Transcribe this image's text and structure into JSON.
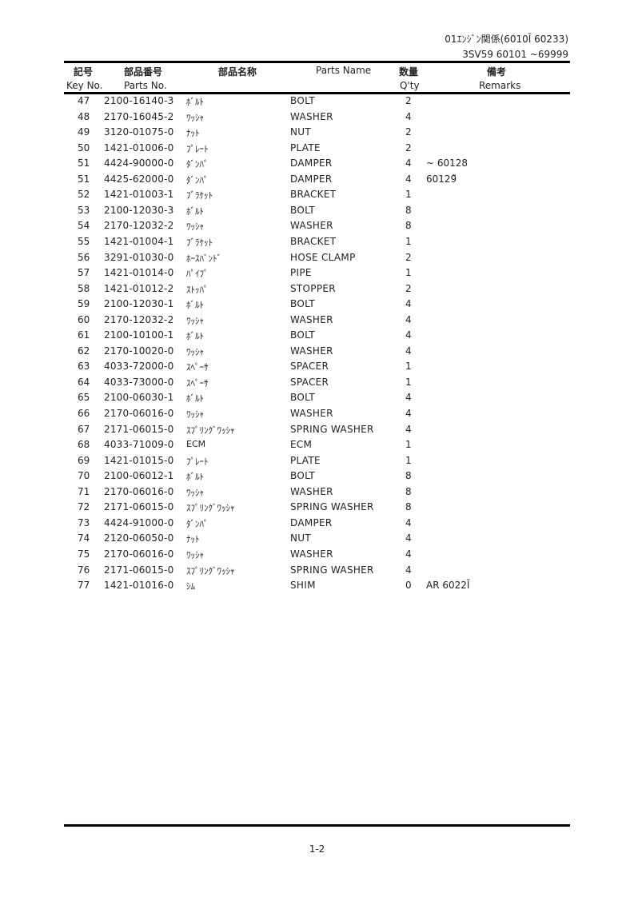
{
  "header": {
    "section": "01ｴﾝｼﾞﾝ関係(6010Ī 60233)",
    "model": "3SV59 60101 ~69999"
  },
  "columns": {
    "key_jp": "記号",
    "key_en": "Key No.",
    "partno_jp": "部品番号",
    "partno_en": "Parts No.",
    "name_jp": "部品名称",
    "name_en": "Parts Name",
    "qty_jp": "数量",
    "qty_en": "Q'ty",
    "remarks_jp": "備考",
    "remarks_en": "Remarks"
  },
  "rows": [
    {
      "key": "47",
      "part_no": "2100-16140-3",
      "name_jp": "ﾎﾞﾙﾄ",
      "name_en": "BOLT",
      "qty": "2",
      "remarks": ""
    },
    {
      "key": "48",
      "part_no": "2170-16045-2",
      "name_jp": "ﾜｯｼｬ",
      "name_en": "WASHER",
      "qty": "4",
      "remarks": ""
    },
    {
      "key": "49",
      "part_no": "3120-01075-0",
      "name_jp": "ﾅｯﾄ",
      "name_en": "NUT",
      "qty": "2",
      "remarks": ""
    },
    {
      "key": "50",
      "part_no": "1421-01006-0",
      "name_jp": "ﾌﾟﾚｰﾄ",
      "name_en": "PLATE",
      "qty": "2",
      "remarks": ""
    },
    {
      "key": "51",
      "part_no": "4424-90000-0",
      "name_jp": "ﾀﾞﾝﾊﾟ",
      "name_en": "DAMPER",
      "qty": "4",
      "remarks": "~ 60128"
    },
    {
      "key": "51",
      "part_no": "4425-62000-0",
      "name_jp": "ﾀﾞﾝﾊﾟ",
      "name_en": "DAMPER",
      "qty": "4",
      "remarks": "6012̃\u00169"
    },
    {
      "key": "52",
      "part_no": "1421-01003-1",
      "name_jp": "ﾌﾞﾗｹｯﾄ",
      "name_en": "BRACKET",
      "qty": "1",
      "remarks": ""
    },
    {
      "key": "53",
      "part_no": "2100-12030-3",
      "name_jp": "ﾎﾞﾙﾄ",
      "name_en": "BOLT",
      "qty": "8",
      "remarks": ""
    },
    {
      "key": "54",
      "part_no": "2170-12032-2",
      "name_jp": "ﾜｯｼｬ",
      "name_en": "WASHER",
      "qty": "8",
      "remarks": ""
    },
    {
      "key": "55",
      "part_no": "1421-01004-1",
      "name_jp": "ﾌﾞﾗｹｯﾄ",
      "name_en": "BRACKET",
      "qty": "1",
      "remarks": ""
    },
    {
      "key": "56",
      "part_no": "3291-01030-0",
      "name_jp": "ﾎｰｽﾊﾞﾝﾄﾞ",
      "name_en": "HOSE CLAMP",
      "qty": "2",
      "remarks": ""
    },
    {
      "key": "57",
      "part_no": "1421-01014-0",
      "name_jp": "ﾊﾟｲﾌﾟ",
      "name_en": "PIPE",
      "qty": "1",
      "remarks": ""
    },
    {
      "key": "58",
      "part_no": "1421-01012-2",
      "name_jp": "ｽﾄｯﾊﾟ",
      "name_en": "STOPPER",
      "qty": "2",
      "remarks": ""
    },
    {
      "key": "59",
      "part_no": "2100-12030-1",
      "name_jp": "ﾎﾞﾙﾄ",
      "name_en": "BOLT",
      "qty": "4",
      "remarks": ""
    },
    {
      "key": "60",
      "part_no": "2170-12032-2",
      "name_jp": "ﾜｯｼｬ",
      "name_en": "WASHER",
      "qty": "4",
      "remarks": ""
    },
    {
      "key": "61",
      "part_no": "2100-10100-1",
      "name_jp": "ﾎﾞﾙﾄ",
      "name_en": "BOLT",
      "qty": "4",
      "remarks": ""
    },
    {
      "key": "62",
      "part_no": "2170-10020-0",
      "name_jp": "ﾜｯｼｬ",
      "name_en": "WASHER",
      "qty": "4",
      "remarks": ""
    },
    {
      "key": "63",
      "part_no": "4033-72000-0",
      "name_jp": "ｽﾍﾟｰｻ",
      "name_en": "SPACER",
      "qty": "1",
      "remarks": ""
    },
    {
      "key": "64",
      "part_no": "4033-73000-0",
      "name_jp": "ｽﾍﾟｰｻ",
      "name_en": "SPACER",
      "qty": "1",
      "remarks": ""
    },
    {
      "key": "65",
      "part_no": "2100-06030-1",
      "name_jp": "ﾎﾞﾙﾄ",
      "name_en": "BOLT",
      "qty": "4",
      "remarks": ""
    },
    {
      "key": "66",
      "part_no": "2170-06016-0",
      "name_jp": "ﾜｯｼｬ",
      "name_en": "WASHER",
      "qty": "4",
      "remarks": ""
    },
    {
      "key": "67",
      "part_no": "2171-06015-0",
      "name_jp": "ｽﾌﾟﾘﾝｸﾞﾜｯｼｬ",
      "name_en": "SPRING WASHER",
      "qty": "4",
      "remarks": ""
    },
    {
      "key": "68",
      "part_no": "4033-71009-0",
      "name_jp": "ECM",
      "name_en": "ECM",
      "qty": "1",
      "remarks": ""
    },
    {
      "key": "69",
      "part_no": "1421-01015-0",
      "name_jp": "ﾌﾟﾚｰﾄ",
      "name_en": "PLATE",
      "qty": "1",
      "remarks": ""
    },
    {
      "key": "70",
      "part_no": "2100-06012-1",
      "name_jp": "ﾎﾞﾙﾄ",
      "name_en": "BOLT",
      "qty": "8",
      "remarks": ""
    },
    {
      "key": "71",
      "part_no": "2170-06016-0",
      "name_jp": "ﾜｯｼｬ",
      "name_en": "WASHER",
      "qty": "8",
      "remarks": ""
    },
    {
      "key": "72",
      "part_no": "2171-06015-0",
      "name_jp": "ｽﾌﾟﾘﾝｸﾞﾜｯｼｬ",
      "name_en": "SPRING WASHER",
      "qty": "8",
      "remarks": ""
    },
    {
      "key": "73",
      "part_no": "4424-91000-0",
      "name_jp": "ﾀﾞﾝﾊﾟ",
      "name_en": "DAMPER",
      "qty": "4",
      "remarks": ""
    },
    {
      "key": "74",
      "part_no": "2120-06050-0",
      "name_jp": "ﾅｯﾄ",
      "name_en": "NUT",
      "qty": "4",
      "remarks": ""
    },
    {
      "key": "75",
      "part_no": "2170-06016-0",
      "name_jp": "ﾜｯｼｬ",
      "name_en": "WASHER",
      "qty": "4",
      "remarks": ""
    },
    {
      "key": "76",
      "part_no": "2171-06015-0",
      "name_jp": "ｽﾌﾟﾘﾝｸﾞﾜｯｼｬ",
      "name_en": "SPRING WASHER",
      "qty": "4",
      "remarks": ""
    },
    {
      "key": "77",
      "part_no": "1421-01016-0",
      "name_jp": "ｼﾑ",
      "name_en": "SHIM",
      "qty": "0",
      "remarks": "AR 6022Ī"
    }
  ],
  "footer": {
    "page": "1-2"
  }
}
